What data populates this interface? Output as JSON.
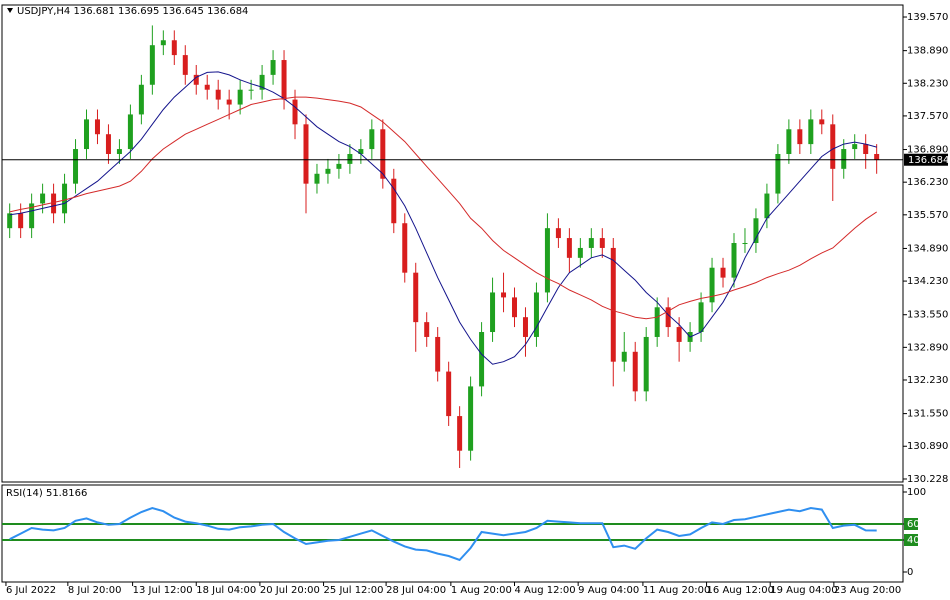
{
  "chart_data": [
    {
      "type": "candlestick",
      "title": "USDJPY,H4  136.681 136.695 136.645 136.684",
      "color_up": "#1fa01f",
      "color_down": "#d81e1e",
      "open": [
        135.3,
        135.6,
        135.3,
        135.8,
        136.0,
        135.6,
        136.2,
        136.9,
        137.5,
        137.2,
        136.8,
        136.9,
        137.6,
        138.2,
        139.0,
        139.1,
        138.8,
        138.4,
        138.2,
        138.1,
        137.9,
        137.8,
        138.1,
        138.1,
        138.4,
        138.7,
        137.9,
        137.4,
        136.2,
        136.4,
        136.5,
        136.6,
        136.8,
        136.9,
        137.3,
        136.3,
        135.4,
        134.4,
        133.4,
        133.1,
        132.4,
        131.5,
        130.8,
        132.1,
        133.2,
        134.0,
        133.9,
        133.5,
        133.1,
        134.0,
        135.3,
        135.1,
        134.7,
        134.9,
        135.1,
        134.9,
        132.6,
        132.8,
        132.0,
        133.1,
        133.7,
        133.3,
        133.0,
        133.2,
        133.8,
        134.5,
        134.3,
        135.0,
        135.0,
        135.5,
        136.0,
        136.8,
        137.3,
        137.0,
        137.5,
        137.4,
        136.5,
        136.9,
        137.0,
        136.8
      ],
      "high": [
        135.8,
        135.8,
        136.0,
        136.2,
        136.2,
        136.4,
        137.1,
        137.7,
        137.7,
        137.4,
        137.1,
        137.8,
        138.4,
        139.4,
        139.3,
        139.3,
        139.0,
        138.6,
        138.4,
        138.3,
        138.1,
        138.3,
        138.3,
        138.6,
        138.9,
        138.9,
        138.1,
        137.6,
        136.6,
        136.7,
        136.8,
        137.0,
        137.1,
        137.5,
        137.5,
        136.5,
        135.6,
        134.6,
        133.6,
        133.3,
        132.6,
        131.7,
        132.3,
        133.4,
        134.3,
        134.4,
        134.1,
        133.7,
        134.2,
        135.6,
        135.5,
        135.3,
        135.1,
        135.3,
        135.3,
        135.1,
        133.2,
        133.0,
        133.3,
        133.9,
        133.9,
        133.5,
        133.4,
        134.0,
        134.7,
        134.7,
        135.2,
        135.3,
        135.7,
        136.2,
        137.0,
        137.5,
        137.5,
        137.7,
        137.7,
        137.6,
        137.1,
        137.2,
        137.2,
        137.0
      ],
      "low": [
        135.1,
        135.1,
        135.1,
        135.6,
        135.4,
        135.4,
        136.0,
        136.7,
        137.0,
        136.6,
        136.6,
        136.7,
        137.4,
        138.0,
        138.8,
        138.6,
        138.2,
        138.0,
        137.9,
        137.7,
        137.5,
        137.6,
        137.9,
        137.9,
        138.2,
        137.7,
        137.1,
        135.6,
        136.0,
        136.2,
        136.3,
        136.4,
        136.6,
        136.7,
        136.1,
        135.2,
        134.2,
        132.8,
        132.9,
        132.2,
        131.3,
        130.45,
        130.6,
        131.9,
        133.0,
        133.6,
        133.3,
        132.7,
        132.9,
        133.8,
        134.9,
        134.4,
        134.5,
        134.7,
        134.7,
        132.1,
        132.4,
        131.8,
        131.8,
        132.9,
        133.1,
        132.6,
        132.8,
        133.0,
        133.6,
        134.1,
        134.1,
        134.8,
        134.8,
        135.3,
        135.8,
        136.6,
        136.8,
        136.8,
        137.2,
        135.85,
        136.3,
        136.7,
        136.5,
        136.4
      ],
      "close": [
        135.6,
        135.3,
        135.8,
        136.0,
        135.6,
        136.2,
        136.9,
        137.5,
        137.2,
        136.8,
        136.9,
        137.6,
        138.2,
        139.0,
        139.1,
        138.8,
        138.4,
        138.2,
        138.1,
        137.9,
        137.8,
        138.1,
        138.1,
        138.4,
        138.7,
        137.9,
        137.4,
        136.2,
        136.4,
        136.5,
        136.6,
        136.8,
        136.9,
        137.3,
        136.3,
        135.4,
        134.4,
        133.4,
        133.1,
        132.4,
        131.5,
        130.8,
        132.1,
        133.2,
        134.0,
        133.9,
        133.5,
        133.1,
        134.0,
        135.3,
        135.1,
        134.7,
        134.9,
        135.1,
        134.9,
        132.6,
        132.8,
        132.0,
        133.1,
        133.7,
        133.3,
        133.0,
        133.2,
        133.8,
        134.5,
        134.3,
        135.0,
        135.0,
        135.5,
        136.0,
        136.8,
        137.3,
        137.0,
        137.5,
        137.4,
        136.5,
        136.9,
        137.0,
        136.8,
        136.684
      ],
      "series": [
        {
          "color": "#14148c",
          "values": [
            135.57,
            135.6,
            135.65,
            135.7,
            135.75,
            135.8,
            135.95,
            136.1,
            136.25,
            136.45,
            136.65,
            136.85,
            137.1,
            137.4,
            137.7,
            137.95,
            138.15,
            138.35,
            138.45,
            138.46,
            138.4,
            138.3,
            138.22,
            138.15,
            138.05,
            137.92,
            137.75,
            137.55,
            137.35,
            137.2,
            137.05,
            136.95,
            136.8,
            136.6,
            136.4,
            136.1,
            135.75,
            135.3,
            134.8,
            134.3,
            133.85,
            133.4,
            133.05,
            132.75,
            132.55,
            132.6,
            132.7,
            132.95,
            133.3,
            133.7,
            134.1,
            134.4,
            134.55,
            134.7,
            134.76,
            134.65,
            134.45,
            134.25,
            134.0,
            133.8,
            133.55,
            133.35,
            133.1,
            133.2,
            133.5,
            133.8,
            134.2,
            134.7,
            135.1,
            135.5,
            135.75,
            136.0,
            136.25,
            136.5,
            136.75,
            136.9,
            137.0,
            137.04,
            137.0,
            136.94
          ]
        },
        {
          "color": "#d42a2a",
          "values": [
            135.63,
            135.68,
            135.72,
            135.77,
            135.82,
            135.87,
            135.93,
            136.0,
            136.05,
            136.1,
            136.15,
            136.25,
            136.45,
            136.7,
            136.9,
            137.05,
            137.2,
            137.3,
            137.4,
            137.5,
            137.6,
            137.7,
            137.8,
            137.85,
            137.9,
            137.92,
            137.95,
            137.95,
            137.93,
            137.9,
            137.87,
            137.83,
            137.75,
            137.6,
            137.45,
            137.25,
            137.05,
            136.8,
            136.55,
            136.3,
            136.05,
            135.8,
            135.5,
            135.3,
            135.05,
            134.85,
            134.7,
            134.55,
            134.4,
            134.28,
            134.18,
            134.05,
            133.95,
            133.85,
            133.72,
            133.63,
            133.57,
            133.5,
            133.47,
            133.5,
            133.62,
            133.75,
            133.82,
            133.88,
            133.92,
            133.97,
            134.05,
            134.12,
            134.2,
            134.3,
            134.38,
            134.45,
            134.55,
            134.68,
            134.8,
            134.9,
            135.1,
            135.3,
            135.48,
            135.63
          ]
        }
      ],
      "current_price": 136.684,
      "xlim": [
        -0.7,
        81.4
      ],
      "ylim": [
        130.167,
        139.813
      ],
      "yticks": [
        {
          "value": 139.57,
          "label": "139.570"
        },
        {
          "value": 138.89,
          "label": "138.890"
        },
        {
          "value": 138.23,
          "label": "138.230"
        },
        {
          "value": 137.57,
          "label": "137.570"
        },
        {
          "value": 136.89,
          "label": "136.890"
        },
        {
          "value": 136.23,
          "label": "136.230"
        },
        {
          "value": 135.57,
          "label": "135.570"
        },
        {
          "value": 134.89,
          "label": "134.890"
        },
        {
          "value": 134.23,
          "label": "134.230"
        },
        {
          "value": 133.55,
          "label": "133.550"
        },
        {
          "value": 132.89,
          "label": "132.890"
        },
        {
          "value": 132.23,
          "label": "132.230"
        },
        {
          "value": 131.55,
          "label": "131.550"
        },
        {
          "value": 130.89,
          "label": "130.890"
        },
        130.228
      ]
    },
    {
      "type": "line",
      "title": "RSI(14) 51.8166",
      "color": "#2f8ff0",
      "level_color": "#1e8c1e",
      "values": [
        41,
        48,
        55,
        53,
        52,
        55,
        64,
        67,
        62,
        59,
        60,
        68,
        75,
        80,
        76,
        68,
        63,
        61,
        58,
        54,
        53,
        56,
        57,
        59,
        60,
        50,
        42,
        35,
        37,
        39,
        40,
        44,
        48,
        52,
        45,
        38,
        32,
        28,
        27,
        23,
        20,
        15,
        30,
        50,
        48,
        46,
        48,
        50,
        55,
        64,
        63,
        62,
        61,
        61,
        61,
        31,
        33,
        29,
        42,
        53,
        50,
        45,
        47,
        55,
        62,
        60,
        65,
        66,
        69,
        72,
        75,
        78,
        76,
        80,
        78,
        55,
        58,
        59,
        52,
        51.8166
      ],
      "levels": [
        60,
        40
      ],
      "xlim": [
        -0.7,
        81.4
      ],
      "ylim": [
        -12.5,
        108.75
      ],
      "yticks": [
        100,
        60,
        40,
        0
      ],
      "xticks": [
        {
          "value": -0.34,
          "label": "6 Jul 2022"
        },
        {
          "value": 5.3,
          "label": "8 Jul 20:00"
        },
        {
          "value": 11.2,
          "label": "13 Jul 12:00"
        },
        {
          "value": 17.0,
          "label": "18 Jul 04:00"
        },
        {
          "value": 22.8,
          "label": "20 Jul 20:00"
        },
        {
          "value": 28.6,
          "label": "25 Jul 12:00"
        },
        {
          "value": 34.3,
          "label": "28 Jul 04:00"
        },
        {
          "value": 40.2,
          "label": "1 Aug 20:00"
        },
        {
          "value": 46.0,
          "label": "4 Aug 12:00"
        },
        {
          "value": 51.8,
          "label": "9 Aug 04:00"
        },
        {
          "value": 57.7,
          "label": "11 Aug 20:00"
        },
        {
          "value": 63.5,
          "label": "16 Aug 12:00"
        },
        {
          "value": 69.3,
          "label": "19 Aug 04:00"
        },
        {
          "value": 75.1,
          "label": "23 Aug 20:00"
        }
      ]
    }
  ]
}
